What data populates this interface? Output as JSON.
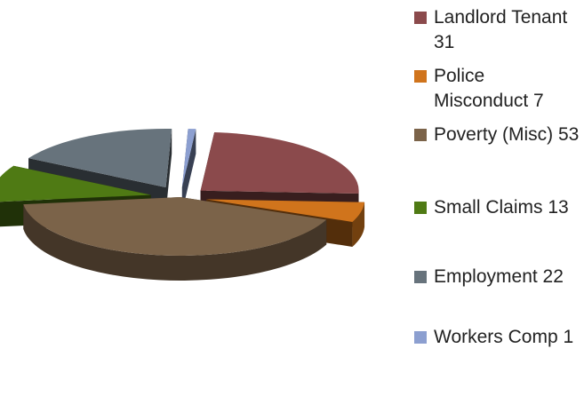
{
  "chart_data": {
    "type": "pie",
    "style": "3d-exploded",
    "slices": [
      {
        "label": "Landlord Tenant 31",
        "value": 31,
        "color": "#8B4A4C"
      },
      {
        "label": "Police Misconduct 7",
        "value": 7,
        "color": "#D0741C"
      },
      {
        "label": "Poverty (Misc) 53",
        "value": 53,
        "color": "#7B6349"
      },
      {
        "label": "Small Claims 13",
        "value": 13,
        "color": "#4F7A14"
      },
      {
        "label": "Employment 22",
        "value": 22,
        "color": "#67737C"
      },
      {
        "label": "Workers Comp 1",
        "value": 1,
        "color": "#8C9FD0"
      }
    ],
    "legend_position": "right"
  }
}
